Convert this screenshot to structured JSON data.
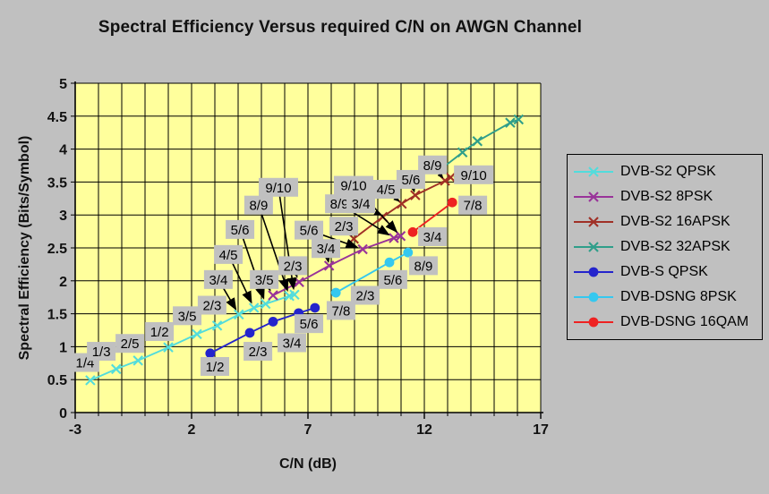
{
  "page": {
    "background": "#c0c0c0",
    "title": "Spectral Efficiency Versus required C/N on AWGN Channel"
  },
  "chart_data": {
    "type": "line",
    "title": "Spectral Efficiency Versus required C/N on AWGN Channel",
    "xlabel": "C/N (dB)",
    "ylabel": "Spectral Efficiency (Bits/Symbol)",
    "xlim": [
      -3,
      17
    ],
    "ylim": [
      0,
      5
    ],
    "x_major_ticks": [
      -3,
      2,
      7,
      12,
      17
    ],
    "x_grid_step": 1,
    "y_tick_step": 0.5,
    "grid": true,
    "plot_bg": "#ffff9c",
    "grid_color": "#000000",
    "callout_chip_color": "#c0c0c0",
    "series": [
      {
        "name": "DVB-S2 QPSK",
        "color": "#52dcdc",
        "marker": "x",
        "points": [
          {
            "rate": "1/4",
            "x": -2.35,
            "y": 0.49
          },
          {
            "rate": "1/3",
            "x": -1.24,
            "y": 0.66
          },
          {
            "rate": "2/5",
            "x": -0.3,
            "y": 0.79
          },
          {
            "rate": "1/2",
            "x": 1.0,
            "y": 0.99
          },
          {
            "rate": "3/5",
            "x": 2.23,
            "y": 1.19
          },
          {
            "rate": "2/3",
            "x": 3.1,
            "y": 1.32
          },
          {
            "rate": "3/4",
            "x": 4.03,
            "y": 1.49
          },
          {
            "rate": "4/5",
            "x": 4.68,
            "y": 1.59
          },
          {
            "rate": "5/6",
            "x": 5.18,
            "y": 1.65
          },
          {
            "rate": "8/9",
            "x": 6.2,
            "y": 1.77
          },
          {
            "rate": "9/10",
            "x": 6.42,
            "y": 1.79
          }
        ],
        "callouts": [
          {
            "rate": "1/4",
            "lx": -2.58,
            "ly": 0.76,
            "arrow": "none"
          },
          {
            "rate": "1/3",
            "lx": -1.88,
            "ly": 0.93,
            "arrow": "none"
          },
          {
            "rate": "2/5",
            "lx": -0.65,
            "ly": 1.05,
            "arrow": "none"
          },
          {
            "rate": "1/2",
            "lx": 0.62,
            "ly": 1.23,
            "arrow": "none"
          },
          {
            "rate": "3/5",
            "lx": 1.81,
            "ly": 1.47,
            "arrow": "none"
          },
          {
            "rate": "2/3",
            "lx": 2.88,
            "ly": 1.63,
            "arrow": "none"
          },
          {
            "rate": "3/4",
            "lx": 3.15,
            "ly": 2.02,
            "arrow": "thick"
          },
          {
            "rate": "4/5",
            "lx": 3.58,
            "ly": 2.4,
            "arrow": "thick"
          },
          {
            "rate": "5/6",
            "lx": 4.08,
            "ly": 2.78,
            "arrow": "thick"
          },
          {
            "rate": "8/9",
            "lx": 4.88,
            "ly": 3.15,
            "arrow": "thick"
          },
          {
            "rate": "9/10",
            "lx": 5.73,
            "ly": 3.42,
            "arrow": "thick"
          }
        ]
      },
      {
        "name": "DVB-S2 8PSK",
        "color": "#993399",
        "marker": "x",
        "points": [
          {
            "rate": "3/5",
            "x": 5.5,
            "y": 1.78
          },
          {
            "rate": "2/3",
            "x": 6.62,
            "y": 1.98
          },
          {
            "rate": "3/4",
            "x": 7.91,
            "y": 2.23
          },
          {
            "rate": "5/6",
            "x": 9.35,
            "y": 2.48
          },
          {
            "rate": "8/9",
            "x": 10.69,
            "y": 2.65
          },
          {
            "rate": "9/10",
            "x": 10.98,
            "y": 2.68
          }
        ],
        "callouts": [
          {
            "rate": "3/5",
            "lx": 5.12,
            "ly": 2.02,
            "arrow": "thick"
          },
          {
            "rate": "2/3",
            "lx": 6.35,
            "ly": 2.23,
            "arrow": "thick"
          },
          {
            "rate": "3/4",
            "lx": 7.77,
            "ly": 2.49,
            "arrow": "thin"
          },
          {
            "rate": "5/6",
            "lx": 7.04,
            "ly": 2.77,
            "arrow": "thick"
          },
          {
            "rate": "8/9",
            "lx": 8.35,
            "ly": 3.17,
            "arrow": "thick"
          },
          {
            "rate": "9/10",
            "lx": 8.96,
            "ly": 3.45,
            "arrow": "thick"
          }
        ]
      },
      {
        "name": "DVB-S2 16APSK",
        "color": "#a03026",
        "marker": "x",
        "points": [
          {
            "rate": "2/3",
            "x": 8.97,
            "y": 2.64
          },
          {
            "rate": "3/4",
            "x": 10.21,
            "y": 2.97
          },
          {
            "rate": "4/5",
            "x": 11.03,
            "y": 3.17
          },
          {
            "rate": "5/6",
            "x": 11.61,
            "y": 3.3
          },
          {
            "rate": "8/9",
            "x": 12.89,
            "y": 3.52
          },
          {
            "rate": "9/10",
            "x": 13.13,
            "y": 3.57
          }
        ],
        "callouts": [
          {
            "rate": "2/3",
            "lx": 8.54,
            "ly": 2.83,
            "arrow": "thin"
          },
          {
            "rate": "3/4",
            "lx": 9.27,
            "ly": 3.17,
            "arrow": "thin"
          },
          {
            "rate": "4/5",
            "lx": 10.35,
            "ly": 3.39,
            "arrow": "thin"
          },
          {
            "rate": "5/6",
            "lx": 11.42,
            "ly": 3.54,
            "arrow": "thin"
          },
          {
            "rate": "8/9",
            "lx": 12.35,
            "ly": 3.76,
            "arrow": "thin"
          },
          {
            "rate": "9/10",
            "lx": 14.12,
            "ly": 3.61,
            "arrow": "thin"
          }
        ]
      },
      {
        "name": "DVB-S2 32APSK",
        "color": "#2f9e8a",
        "marker": "x",
        "points": [
          {
            "rate": "3/4",
            "x": 12.73,
            "y": 3.7
          },
          {
            "rate": "4/5",
            "x": 13.64,
            "y": 3.95
          },
          {
            "rate": "5/6",
            "x": 14.28,
            "y": 4.12
          },
          {
            "rate": "8/9",
            "x": 15.69,
            "y": 4.4
          },
          {
            "rate": "9/10",
            "x": 16.05,
            "y": 4.45
          }
        ],
        "callouts": []
      },
      {
        "name": "DVB-S QPSK",
        "color": "#2424cc",
        "marker": "circle",
        "points": [
          {
            "rate": "1/2",
            "x": 2.8,
            "y": 0.9
          },
          {
            "rate": "2/3",
            "x": 4.5,
            "y": 1.21
          },
          {
            "rate": "3/4",
            "x": 5.5,
            "y": 1.38
          },
          {
            "rate": "5/6",
            "x": 6.6,
            "y": 1.51
          },
          {
            "rate": "7/8",
            "x": 7.3,
            "y": 1.59
          }
        ],
        "callouts": [
          {
            "rate": "1/2",
            "lx": 3.0,
            "ly": 0.7,
            "arrow": "none"
          },
          {
            "rate": "2/3",
            "lx": 4.85,
            "ly": 0.93,
            "arrow": "none"
          },
          {
            "rate": "3/4",
            "lx": 6.31,
            "ly": 1.06,
            "arrow": "none"
          },
          {
            "rate": "5/6",
            "lx": 7.04,
            "ly": 1.35,
            "arrow": "none"
          },
          {
            "rate": "7/8",
            "lx": 8.42,
            "ly": 1.55,
            "arrow": "none"
          }
        ]
      },
      {
        "name": "DVB-DSNG 8PSK",
        "color": "#35c8ef",
        "marker": "circle",
        "points": [
          {
            "rate": "2/3",
            "x": 8.2,
            "y": 1.82
          },
          {
            "rate": "5/6",
            "x": 10.5,
            "y": 2.28
          },
          {
            "rate": "8/9",
            "x": 11.3,
            "y": 2.43
          }
        ],
        "callouts": [
          {
            "rate": "2/3",
            "lx": 9.46,
            "ly": 1.78,
            "arrow": "none"
          },
          {
            "rate": "5/6",
            "lx": 10.65,
            "ly": 2.02,
            "arrow": "none"
          },
          {
            "rate": "8/9",
            "lx": 11.96,
            "ly": 2.23,
            "arrow": "none"
          }
        ]
      },
      {
        "name": "DVB-DSNG 16QAM",
        "color": "#ee2222",
        "marker": "circle",
        "points": [
          {
            "rate": "3/4",
            "x": 11.5,
            "y": 2.74
          },
          {
            "rate": "7/8",
            "x": 13.2,
            "y": 3.19
          }
        ],
        "callouts": [
          {
            "rate": "3/4",
            "lx": 12.35,
            "ly": 2.67,
            "arrow": "none"
          },
          {
            "rate": "7/8",
            "lx": 14.08,
            "ly": 3.15,
            "arrow": "none"
          }
        ]
      }
    ],
    "legend_position": "right"
  }
}
